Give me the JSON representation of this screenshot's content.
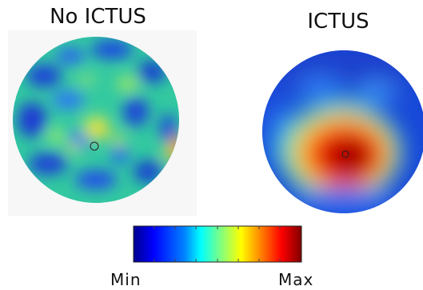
{
  "panels": {
    "left": {
      "title": "No ICTUS"
    },
    "right": {
      "title": "ICTUS"
    }
  },
  "colorbar": {
    "min_label": "Min",
    "max_label": "Max",
    "colormap": "jet",
    "colors": [
      "#00008f",
      "#0000ff",
      "#0080ff",
      "#00ffff",
      "#80ff80",
      "#ffff00",
      "#ff8000",
      "#ff0000",
      "#800000"
    ]
  }
}
